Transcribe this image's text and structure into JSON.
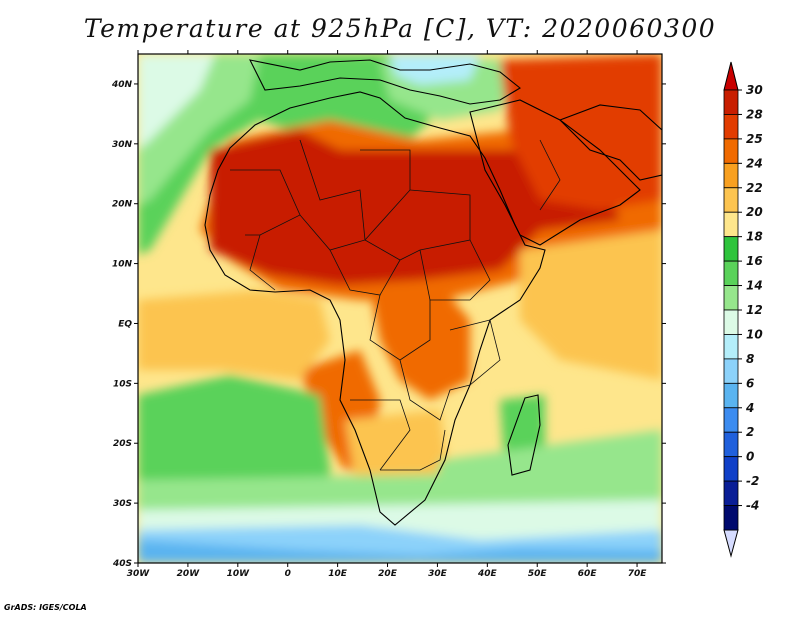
{
  "title": "Temperature at 925hPa [C], VT: 2020060300",
  "credit": "GrADS: IGES/COLA",
  "map": {
    "lon_range": [
      -30,
      75
    ],
    "lat_range": [
      -40,
      45
    ],
    "x_ticks": [
      {
        "value": -30,
        "label": "30W"
      },
      {
        "value": -20,
        "label": "20W"
      },
      {
        "value": -10,
        "label": "10W"
      },
      {
        "value": 0,
        "label": "0"
      },
      {
        "value": 10,
        "label": "10E"
      },
      {
        "value": 20,
        "label": "20E"
      },
      {
        "value": 30,
        "label": "30E"
      },
      {
        "value": 40,
        "label": "40E"
      },
      {
        "value": 50,
        "label": "50E"
      },
      {
        "value": 60,
        "label": "60E"
      },
      {
        "value": 70,
        "label": "70E"
      }
    ],
    "y_ticks": [
      {
        "value": 40,
        "label": "40N"
      },
      {
        "value": 30,
        "label": "30N"
      },
      {
        "value": 20,
        "label": "20N"
      },
      {
        "value": 10,
        "label": "10N"
      },
      {
        "value": 0,
        "label": "EQ"
      },
      {
        "value": -10,
        "label": "10S"
      },
      {
        "value": -20,
        "label": "20S"
      },
      {
        "value": -30,
        "label": "30S"
      },
      {
        "value": -40,
        "label": "40S"
      }
    ]
  },
  "colorbar": {
    "levels": [
      {
        "label": "30",
        "color": "#c81e00"
      },
      {
        "label": "28",
        "color": "#e23c00"
      },
      {
        "label": "25",
        "color": "#f06a00"
      },
      {
        "label": "24",
        "color": "#f8a020"
      },
      {
        "label": "22",
        "color": "#fcc450"
      },
      {
        "label": "20",
        "color": "#fee68c"
      },
      {
        "label": "18",
        "color": "#2ec43c"
      },
      {
        "label": "16",
        "color": "#5ad25a"
      },
      {
        "label": "14",
        "color": "#96e68c"
      },
      {
        "label": "12",
        "color": "#dcfae6"
      },
      {
        "label": "10",
        "color": "#b4eefa"
      },
      {
        "label": "8",
        "color": "#8cd2fa"
      },
      {
        "label": "6",
        "color": "#5ab4f0"
      },
      {
        "label": "4",
        "color": "#3c8cf0"
      },
      {
        "label": "2",
        "color": "#2060dc"
      },
      {
        "label": "0",
        "color": "#1040c8"
      },
      {
        "label": "-2",
        "color": "#0a1e96"
      },
      {
        "label": "-4",
        "color": "#000a6e"
      }
    ],
    "top_color": "#c80000",
    "bottom_color": "#d6dcff"
  },
  "palette": {
    "ocean_default": "#fee68c",
    "land_outline": "#000000"
  }
}
